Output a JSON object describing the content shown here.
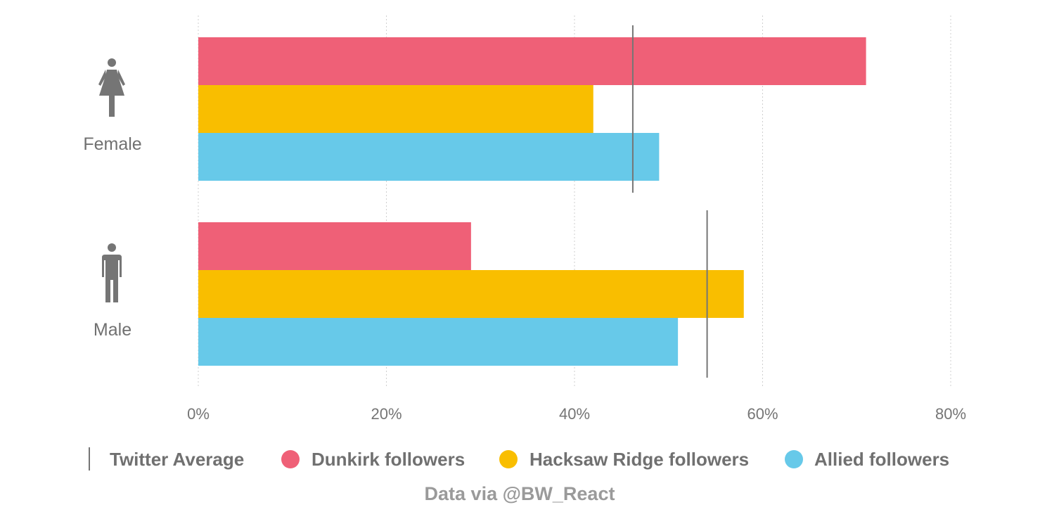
{
  "chart_data": {
    "type": "bar",
    "orientation": "horizontal",
    "categories": [
      "Female",
      "Male"
    ],
    "series": [
      {
        "name": "Dunkirk followers",
        "color": "#EF6077",
        "values": [
          71,
          29
        ]
      },
      {
        "name": "Hacksaw Ridge followers",
        "color": "#F9BE00",
        "values": [
          42,
          58
        ]
      },
      {
        "name": "Allied followers",
        "color": "#67C9E9",
        "values": [
          49,
          51
        ]
      }
    ],
    "reference": {
      "name": "Twitter Average",
      "color": "#757575",
      "values": [
        46.2,
        54.1
      ]
    },
    "x_ticks": [
      0,
      20,
      40,
      60,
      80
    ],
    "x_tick_labels": [
      "0%",
      "20%",
      "40%",
      "60%",
      "80%"
    ],
    "xlim": [
      0,
      80
    ],
    "grid": "vertical dotted",
    "legend_position": "bottom",
    "icons": [
      "female-person-icon",
      "male-person-icon"
    ],
    "source": "Data via @BW_React"
  }
}
